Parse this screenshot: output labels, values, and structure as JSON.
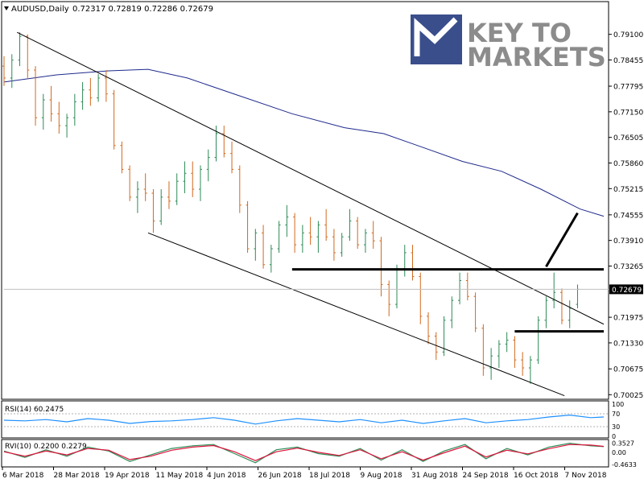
{
  "header": {
    "symbol": "AUDUSD,Daily",
    "ohlc": "0.72317 0.72819 0.72286 0.72679"
  },
  "logo": {
    "line1": "KEY TO",
    "line2": "MARKETS",
    "color": "#3a4e8c",
    "text_color": "#8c8c8c"
  },
  "colors": {
    "bull": "#2e8b57",
    "bear": "#d2691e",
    "ma": "#1f2a8c",
    "trend": "#000000",
    "rsi": "#1e90ff",
    "rvi_main": "#2e8b57",
    "rvi_signal": "#dc143c",
    "price_marker_bg": "#000000",
    "price_marker_text": "#ffffff"
  },
  "chart_data": [
    {
      "type": "candlestick",
      "panel": "price",
      "title": "AUDUSD,Daily",
      "y_ticks": [
        "0.79100",
        "0.78455",
        "0.77795",
        "0.77150",
        "0.76505",
        "0.75860",
        "0.75215",
        "0.74555",
        "0.73910",
        "0.73265",
        "0.72679",
        "0.71975",
        "0.71330",
        "0.70675",
        "0.70025"
      ],
      "x_ticks": [
        "6 Mar 2018",
        "28 Mar 2018",
        "19 Apr 2018",
        "11 May 2018",
        "4 Jun 2018",
        "26 Jun 2018",
        "18 Jul 2018",
        "9 Aug 2018",
        "31 Aug 2018",
        "24 Sep 2018",
        "16 Oct 2018",
        "7 Nov 2018"
      ],
      "ylim": [
        0.6995,
        0.796
      ],
      "last_price": "0.72679",
      "grid": false,
      "series": [
        {
          "name": "",
          "type": "moving_average",
          "points": [
            [
              0,
              0.779
            ],
            [
              20,
              0.7808
            ],
            [
              40,
              0.7818
            ],
            [
              55,
              0.7822
            ],
            [
              70,
              0.78
            ],
            [
              90,
              0.7755
            ],
            [
              110,
              0.771
            ],
            [
              130,
              0.7675
            ],
            [
              145,
              0.766
            ],
            [
              160,
              0.7625
            ],
            [
              175,
              0.759
            ],
            [
              190,
              0.7565
            ],
            [
              205,
              0.752
            ],
            [
              220,
              0.747
            ],
            [
              229,
              0.7452
            ]
          ]
        }
      ],
      "candles": [
        [
          0,
          0.783,
          0.7855,
          0.778,
          0.78
        ],
        [
          3,
          0.78,
          0.786,
          0.7775,
          0.7845
        ],
        [
          6,
          0.7845,
          0.7915,
          0.783,
          0.7905
        ],
        [
          9,
          0.7905,
          0.791,
          0.78,
          0.782
        ],
        [
          12,
          0.782,
          0.783,
          0.768,
          0.77
        ],
        [
          15,
          0.77,
          0.776,
          0.767,
          0.7745
        ],
        [
          18,
          0.7745,
          0.778,
          0.769,
          0.771
        ],
        [
          21,
          0.771,
          0.774,
          0.766,
          0.768
        ],
        [
          24,
          0.768,
          0.771,
          0.765,
          0.77
        ],
        [
          27,
          0.77,
          0.776,
          0.768,
          0.774
        ],
        [
          30,
          0.774,
          0.779,
          0.772,
          0.777
        ],
        [
          33,
          0.777,
          0.78,
          0.773,
          0.775
        ],
        [
          36,
          0.775,
          0.781,
          0.774,
          0.78
        ],
        [
          39,
          0.78,
          0.782,
          0.774,
          0.776
        ],
        [
          42,
          0.776,
          0.777,
          0.762,
          0.763
        ],
        [
          45,
          0.763,
          0.764,
          0.756,
          0.757
        ],
        [
          48,
          0.757,
          0.758,
          0.749,
          0.75
        ],
        [
          51,
          0.75,
          0.754,
          0.746,
          0.752
        ],
        [
          54,
          0.752,
          0.756,
          0.749,
          0.751
        ],
        [
          57,
          0.751,
          0.752,
          0.741,
          0.744
        ],
        [
          60,
          0.744,
          0.752,
          0.743,
          0.75
        ],
        [
          63,
          0.75,
          0.754,
          0.747,
          0.749
        ],
        [
          66,
          0.749,
          0.756,
          0.748,
          0.754
        ],
        [
          69,
          0.754,
          0.759,
          0.751,
          0.756
        ],
        [
          72,
          0.756,
          0.759,
          0.75,
          0.752
        ],
        [
          75,
          0.752,
          0.758,
          0.749,
          0.757
        ],
        [
          78,
          0.757,
          0.762,
          0.754,
          0.76
        ],
        [
          81,
          0.76,
          0.768,
          0.759,
          0.766
        ],
        [
          84,
          0.766,
          0.768,
          0.76,
          0.761
        ],
        [
          87,
          0.761,
          0.764,
          0.756,
          0.757
        ],
        [
          90,
          0.757,
          0.758,
          0.746,
          0.748
        ],
        [
          93,
          0.748,
          0.749,
          0.736,
          0.737
        ],
        [
          96,
          0.737,
          0.742,
          0.734,
          0.741
        ],
        [
          99,
          0.741,
          0.743,
          0.732,
          0.733
        ],
        [
          102,
          0.733,
          0.738,
          0.731,
          0.737
        ],
        [
          105,
          0.737,
          0.744,
          0.736,
          0.743
        ],
        [
          108,
          0.743,
          0.748,
          0.74,
          0.745
        ],
        [
          111,
          0.745,
          0.746,
          0.736,
          0.738
        ],
        [
          114,
          0.738,
          0.743,
          0.736,
          0.741
        ],
        [
          117,
          0.741,
          0.745,
          0.738,
          0.74
        ],
        [
          120,
          0.74,
          0.744,
          0.736,
          0.743
        ],
        [
          123,
          0.743,
          0.747,
          0.739,
          0.74
        ],
        [
          126,
          0.74,
          0.742,
          0.734,
          0.736
        ],
        [
          129,
          0.736,
          0.741,
          0.735,
          0.74
        ],
        [
          132,
          0.74,
          0.747,
          0.739,
          0.744
        ],
        [
          135,
          0.744,
          0.745,
          0.737,
          0.738
        ],
        [
          138,
          0.738,
          0.742,
          0.736,
          0.741
        ],
        [
          141,
          0.741,
          0.744,
          0.737,
          0.739
        ],
        [
          144,
          0.739,
          0.74,
          0.725,
          0.728
        ],
        [
          147,
          0.728,
          0.729,
          0.72,
          0.723
        ],
        [
          150,
          0.723,
          0.733,
          0.722,
          0.732
        ],
        [
          153,
          0.732,
          0.738,
          0.73,
          0.736
        ],
        [
          156,
          0.736,
          0.738,
          0.729,
          0.73
        ],
        [
          159,
          0.73,
          0.731,
          0.718,
          0.72
        ],
        [
          162,
          0.72,
          0.721,
          0.713,
          0.715
        ],
        [
          165,
          0.715,
          0.716,
          0.709,
          0.711
        ],
        [
          168,
          0.711,
          0.72,
          0.71,
          0.719
        ],
        [
          171,
          0.719,
          0.725,
          0.717,
          0.724
        ],
        [
          174,
          0.724,
          0.731,
          0.723,
          0.729
        ],
        [
          177,
          0.729,
          0.731,
          0.724,
          0.725
        ],
        [
          180,
          0.725,
          0.726,
          0.716,
          0.717
        ],
        [
          183,
          0.717,
          0.718,
          0.705,
          0.707
        ],
        [
          186,
          0.707,
          0.712,
          0.704,
          0.71
        ],
        [
          189,
          0.71,
          0.714,
          0.707,
          0.713
        ],
        [
          192,
          0.713,
          0.716,
          0.711,
          0.714
        ],
        [
          195,
          0.714,
          0.715,
          0.707,
          0.709
        ],
        [
          198,
          0.709,
          0.711,
          0.705,
          0.707
        ],
        [
          201,
          0.707,
          0.71,
          0.703,
          0.709
        ],
        [
          204,
          0.709,
          0.72,
          0.708,
          0.719
        ],
        [
          207,
          0.719,
          0.725,
          0.717,
          0.724
        ],
        [
          210,
          0.724,
          0.731,
          0.722,
          0.726
        ],
        [
          213,
          0.726,
          0.727,
          0.718,
          0.719
        ],
        [
          216,
          0.719,
          0.724,
          0.717,
          0.722
        ],
        [
          219,
          0.723,
          0.728,
          0.722,
          0.7268
        ]
      ],
      "annotations": [
        {
          "kind": "trendline",
          "from": [
            5,
            0.7915
          ],
          "to": [
            229,
            0.718
          ]
        },
        {
          "kind": "trendline",
          "from": [
            55,
            0.741
          ],
          "to": [
            214,
            0.7
          ]
        },
        {
          "kind": "level",
          "from": [
            110,
            0.7318
          ],
          "to": [
            229,
            0.7318
          ]
        },
        {
          "kind": "level",
          "from": [
            195,
            0.7162
          ],
          "to": [
            229,
            0.7162
          ]
        },
        {
          "kind": "arrow",
          "from": [
            207,
            0.7325
          ],
          "to": [
            219,
            0.746
          ]
        }
      ]
    },
    {
      "type": "line",
      "panel": "rsi",
      "title": "RSI(14) 60.2475",
      "y_ticks": [
        "100",
        "70",
        "30",
        "0"
      ],
      "levels": [
        70,
        30
      ],
      "ylim": [
        0,
        100
      ],
      "series": [
        {
          "name": "",
          "x": [
            0,
            8,
            16,
            24,
            32,
            40,
            48,
            56,
            64,
            72,
            80,
            88,
            96,
            104,
            112,
            120,
            128,
            136,
            144,
            152,
            160,
            168,
            176,
            184,
            192,
            200,
            208,
            216,
            224,
            229
          ],
          "values": [
            50,
            48,
            52,
            45,
            55,
            50,
            40,
            46,
            48,
            52,
            58,
            50,
            38,
            48,
            55,
            50,
            45,
            52,
            42,
            50,
            40,
            48,
            55,
            42,
            48,
            52,
            60,
            66,
            58,
            60
          ]
        }
      ]
    },
    {
      "type": "line",
      "panel": "rvi",
      "title": "RVI(10) 0.2200 0.2279",
      "y_ticks": [
        "0.3527",
        "0.00",
        "-0.4633"
      ],
      "ylim": [
        -0.5,
        0.4
      ],
      "series": [
        {
          "name": "",
          "x": [
            0,
            8,
            16,
            24,
            32,
            40,
            48,
            56,
            64,
            72,
            80,
            88,
            96,
            104,
            112,
            120,
            128,
            136,
            144,
            152,
            160,
            168,
            176,
            184,
            192,
            200,
            208,
            216,
            224,
            229
          ],
          "values": [
            0.05,
            -0.2,
            0.1,
            -0.15,
            0.2,
            0.05,
            -0.35,
            -0.1,
            0.15,
            0.25,
            0.3,
            -0.05,
            -0.4,
            0.1,
            0.2,
            -0.05,
            -0.15,
            0.15,
            -0.3,
            0.1,
            -0.35,
            0.05,
            0.3,
            -0.25,
            0.15,
            -0.1,
            0.2,
            0.35,
            0.25,
            0.22
          ]
        },
        {
          "name": "",
          "x": [
            0,
            8,
            16,
            24,
            32,
            40,
            48,
            56,
            64,
            72,
            80,
            88,
            96,
            104,
            112,
            120,
            128,
            136,
            144,
            152,
            160,
            168,
            176,
            184,
            192,
            200,
            208,
            216,
            224,
            229
          ],
          "values": [
            0.02,
            -0.15,
            0.05,
            -0.1,
            0.15,
            0.08,
            -0.28,
            -0.15,
            0.08,
            0.2,
            0.26,
            0.02,
            -0.32,
            0.02,
            0.16,
            0.0,
            -0.12,
            0.1,
            -0.25,
            0.02,
            -0.3,
            -0.02,
            0.24,
            -0.18,
            0.08,
            -0.06,
            0.14,
            0.3,
            0.28,
            0.23
          ]
        }
      ]
    }
  ]
}
